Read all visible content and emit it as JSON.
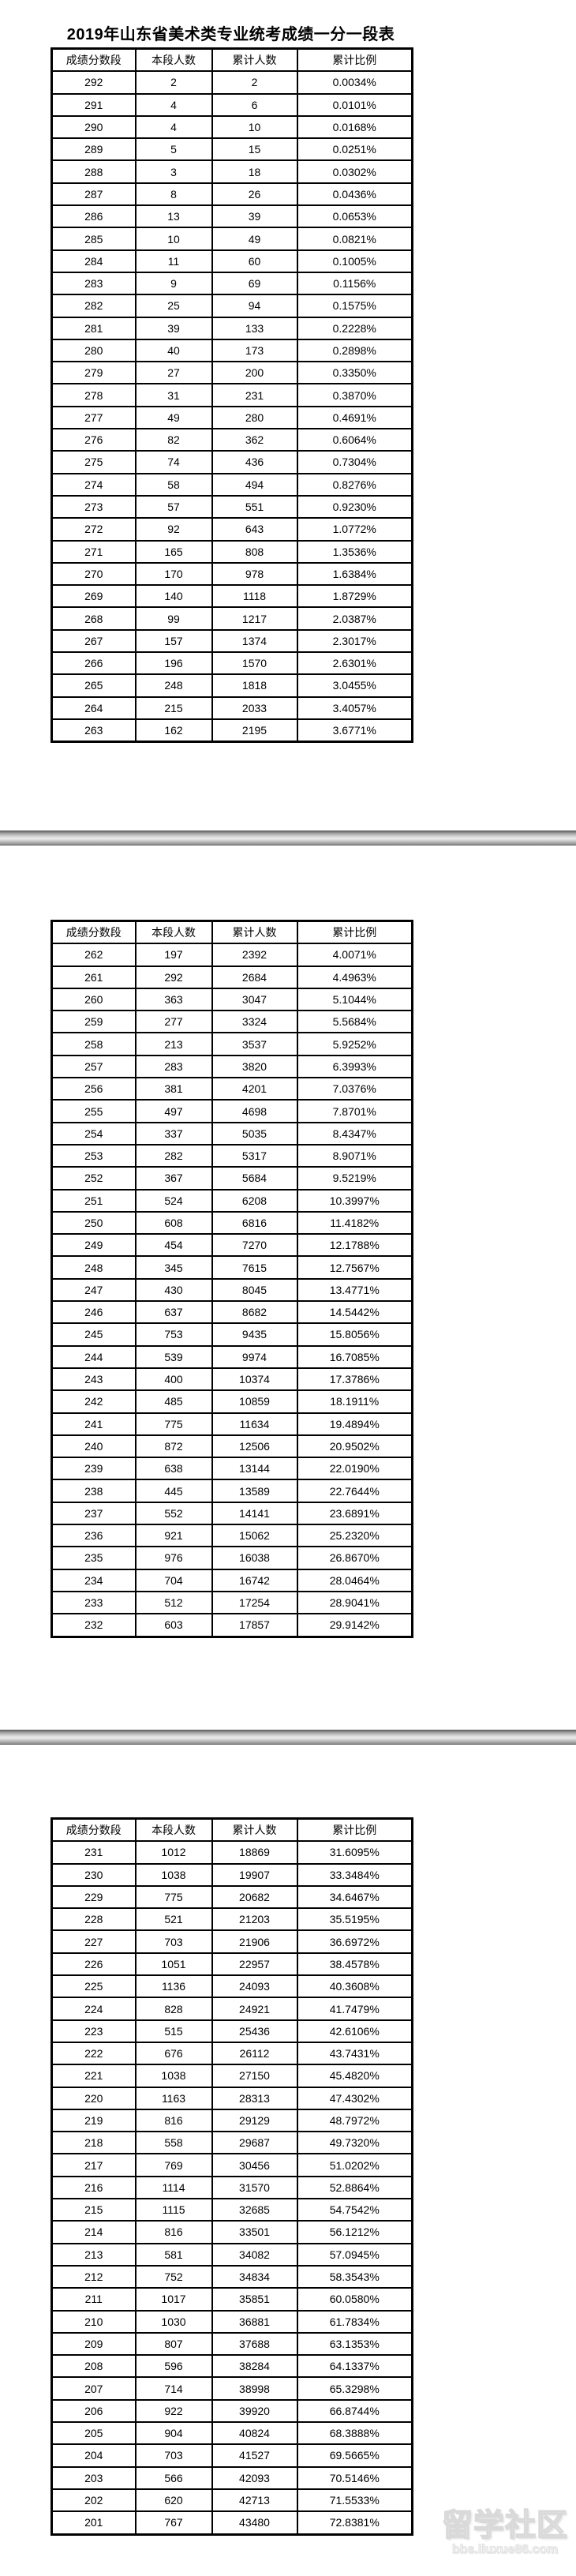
{
  "title": "2019年山东省美术类专业统考成绩一分一段表",
  "columns": [
    "成绩分数段",
    "本段人数",
    "累计人数",
    "累计比例"
  ],
  "colors": {
    "background": "#ffffff",
    "table_border": "#000000",
    "text": "#000000",
    "separator_gray": "#bfbfbf"
  },
  "tables": [
    {
      "rows": [
        [
          "292",
          "2",
          "2",
          "0.0034%"
        ],
        [
          "291",
          "4",
          "6",
          "0.0101%"
        ],
        [
          "290",
          "4",
          "10",
          "0.0168%"
        ],
        [
          "289",
          "5",
          "15",
          "0.0251%"
        ],
        [
          "288",
          "3",
          "18",
          "0.0302%"
        ],
        [
          "287",
          "8",
          "26",
          "0.0436%"
        ],
        [
          "286",
          "13",
          "39",
          "0.0653%"
        ],
        [
          "285",
          "10",
          "49",
          "0.0821%"
        ],
        [
          "284",
          "11",
          "60",
          "0.1005%"
        ],
        [
          "283",
          "9",
          "69",
          "0.1156%"
        ],
        [
          "282",
          "25",
          "94",
          "0.1575%"
        ],
        [
          "281",
          "39",
          "133",
          "0.2228%"
        ],
        [
          "280",
          "40",
          "173",
          "0.2898%"
        ],
        [
          "279",
          "27",
          "200",
          "0.3350%"
        ],
        [
          "278",
          "31",
          "231",
          "0.3870%"
        ],
        [
          "277",
          "49",
          "280",
          "0.4691%"
        ],
        [
          "276",
          "82",
          "362",
          "0.6064%"
        ],
        [
          "275",
          "74",
          "436",
          "0.7304%"
        ],
        [
          "274",
          "58",
          "494",
          "0.8276%"
        ],
        [
          "273",
          "57",
          "551",
          "0.9230%"
        ],
        [
          "272",
          "92",
          "643",
          "1.0772%"
        ],
        [
          "271",
          "165",
          "808",
          "1.3536%"
        ],
        [
          "270",
          "170",
          "978",
          "1.6384%"
        ],
        [
          "269",
          "140",
          "1118",
          "1.8729%"
        ],
        [
          "268",
          "99",
          "1217",
          "2.0387%"
        ],
        [
          "267",
          "157",
          "1374",
          "2.3017%"
        ],
        [
          "266",
          "196",
          "1570",
          "2.6301%"
        ],
        [
          "265",
          "248",
          "1818",
          "3.0455%"
        ],
        [
          "264",
          "215",
          "2033",
          "3.4057%"
        ],
        [
          "263",
          "162",
          "2195",
          "3.6771%"
        ]
      ]
    },
    {
      "rows": [
        [
          "262",
          "197",
          "2392",
          "4.0071%"
        ],
        [
          "261",
          "292",
          "2684",
          "4.4963%"
        ],
        [
          "260",
          "363",
          "3047",
          "5.1044%"
        ],
        [
          "259",
          "277",
          "3324",
          "5.5684%"
        ],
        [
          "258",
          "213",
          "3537",
          "5.9252%"
        ],
        [
          "257",
          "283",
          "3820",
          "6.3993%"
        ],
        [
          "256",
          "381",
          "4201",
          "7.0376%"
        ],
        [
          "255",
          "497",
          "4698",
          "7.8701%"
        ],
        [
          "254",
          "337",
          "5035",
          "8.4347%"
        ],
        [
          "253",
          "282",
          "5317",
          "8.9071%"
        ],
        [
          "252",
          "367",
          "5684",
          "9.5219%"
        ],
        [
          "251",
          "524",
          "6208",
          "10.3997%"
        ],
        [
          "250",
          "608",
          "6816",
          "11.4182%"
        ],
        [
          "249",
          "454",
          "7270",
          "12.1788%"
        ],
        [
          "248",
          "345",
          "7615",
          "12.7567%"
        ],
        [
          "247",
          "430",
          "8045",
          "13.4771%"
        ],
        [
          "246",
          "637",
          "8682",
          "14.5442%"
        ],
        [
          "245",
          "753",
          "9435",
          "15.8056%"
        ],
        [
          "244",
          "539",
          "9974",
          "16.7085%"
        ],
        [
          "243",
          "400",
          "10374",
          "17.3786%"
        ],
        [
          "242",
          "485",
          "10859",
          "18.1911%"
        ],
        [
          "241",
          "775",
          "11634",
          "19.4894%"
        ],
        [
          "240",
          "872",
          "12506",
          "20.9502%"
        ],
        [
          "239",
          "638",
          "13144",
          "22.0190%"
        ],
        [
          "238",
          "445",
          "13589",
          "22.7644%"
        ],
        [
          "237",
          "552",
          "14141",
          "23.6891%"
        ],
        [
          "236",
          "921",
          "15062",
          "25.2320%"
        ],
        [
          "235",
          "976",
          "16038",
          "26.8670%"
        ],
        [
          "234",
          "704",
          "16742",
          "28.0464%"
        ],
        [
          "233",
          "512",
          "17254",
          "28.9041%"
        ],
        [
          "232",
          "603",
          "17857",
          "29.9142%"
        ]
      ]
    },
    {
      "rows": [
        [
          "231",
          "1012",
          "18869",
          "31.6095%"
        ],
        [
          "230",
          "1038",
          "19907",
          "33.3484%"
        ],
        [
          "229",
          "775",
          "20682",
          "34.6467%"
        ],
        [
          "228",
          "521",
          "21203",
          "35.5195%"
        ],
        [
          "227",
          "703",
          "21906",
          "36.6972%"
        ],
        [
          "226",
          "1051",
          "22957",
          "38.4578%"
        ],
        [
          "225",
          "1136",
          "24093",
          "40.3608%"
        ],
        [
          "224",
          "828",
          "24921",
          "41.7479%"
        ],
        [
          "223",
          "515",
          "25436",
          "42.6106%"
        ],
        [
          "222",
          "676",
          "26112",
          "43.7431%"
        ],
        [
          "221",
          "1038",
          "27150",
          "45.4820%"
        ],
        [
          "220",
          "1163",
          "28313",
          "47.4302%"
        ],
        [
          "219",
          "816",
          "29129",
          "48.7972%"
        ],
        [
          "218",
          "558",
          "29687",
          "49.7320%"
        ],
        [
          "217",
          "769",
          "30456",
          "51.0202%"
        ],
        [
          "216",
          "1114",
          "31570",
          "52.8864%"
        ],
        [
          "215",
          "1115",
          "32685",
          "54.7542%"
        ],
        [
          "214",
          "816",
          "33501",
          "56.1212%"
        ],
        [
          "213",
          "581",
          "34082",
          "57.0945%"
        ],
        [
          "212",
          "752",
          "34834",
          "58.3543%"
        ],
        [
          "211",
          "1017",
          "35851",
          "60.0580%"
        ],
        [
          "210",
          "1030",
          "36881",
          "61.7834%"
        ],
        [
          "209",
          "807",
          "37688",
          "63.1353%"
        ],
        [
          "208",
          "596",
          "38284",
          "64.1337%"
        ],
        [
          "207",
          "714",
          "38998",
          "65.3298%"
        ],
        [
          "206",
          "922",
          "39920",
          "66.8744%"
        ],
        [
          "205",
          "904",
          "40824",
          "68.3888%"
        ],
        [
          "204",
          "703",
          "41527",
          "69.5665%"
        ],
        [
          "203",
          "566",
          "42093",
          "70.5146%"
        ],
        [
          "202",
          "620",
          "42713",
          "71.5533%"
        ],
        [
          "201",
          "767",
          "43480",
          "72.8381%"
        ]
      ]
    }
  ],
  "watermark": {
    "line1": "留学社区",
    "line2": "bbs.liuxue86.com"
  }
}
